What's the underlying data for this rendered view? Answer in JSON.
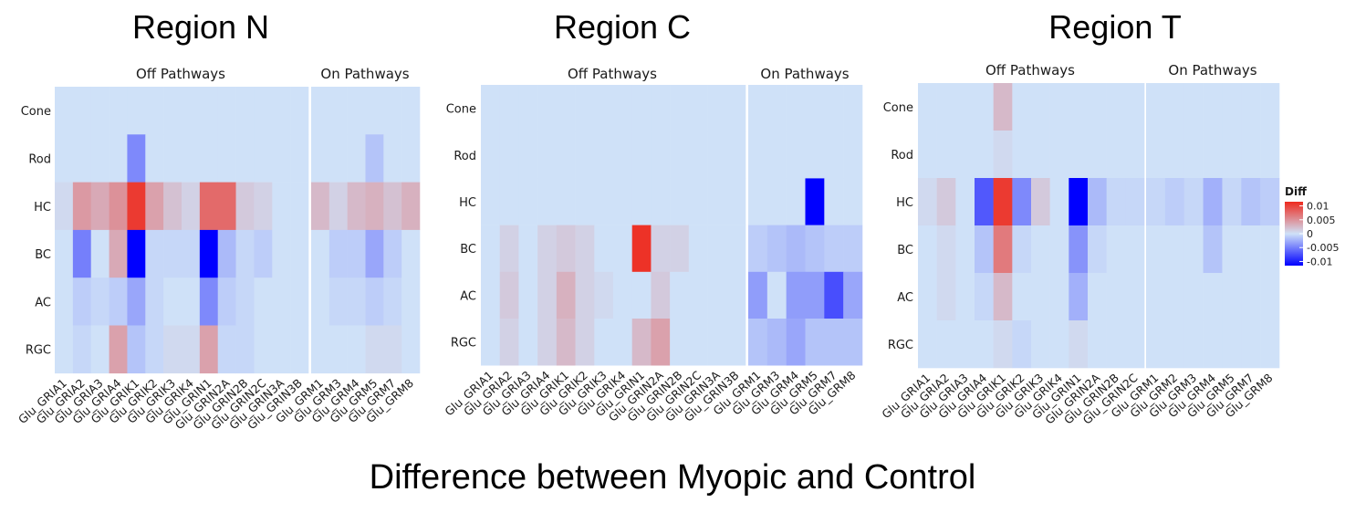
{
  "caption": "Difference between Myopic and Control",
  "rows": [
    "Cone",
    "Rod",
    "HC",
    "BC",
    "AC",
    "RGC"
  ],
  "legend": {
    "title": "Diff",
    "ticks": [
      "0.01",
      "0.005",
      "0",
      "-0.005",
      "-0.01"
    ],
    "tick_values": [
      0.01,
      0.005,
      0,
      -0.005,
      -0.01
    ],
    "colors": {
      "low": "#0000ff",
      "mid": "#cfe1f8",
      "high": "#ee2a1e"
    }
  },
  "chart_data": [
    {
      "type": "heatmap",
      "title": "Region N",
      "facets": [
        {
          "label": "Off Pathways",
          "columns": [
            "Glu_GRIA1",
            "Glu_GRIA2",
            "Glu_GRIA3",
            "Glu_GRIA4",
            "Glu_GRIK1",
            "Glu_GRIK2",
            "Glu_GRIK3",
            "Glu_GRIK4",
            "Glu_GRIN1",
            "Glu_GRIN2A",
            "Glu_GRIN2B",
            "Glu_GRIN2C",
            "Glu_GRIN3A",
            "Glu_GRIN3B"
          ],
          "values": [
            [
              0,
              0,
              0,
              0,
              0,
              0,
              0,
              0,
              0,
              0,
              0,
              0,
              0,
              0
            ],
            [
              0,
              0,
              0,
              0,
              -0.0045,
              0,
              0,
              0,
              0,
              0,
              0,
              0,
              0,
              0
            ],
            [
              0.0005,
              0.0045,
              0.0035,
              0.005,
              0.0105,
              0.004,
              0.002,
              0.001,
              0.0075,
              0.0075,
              0.0015,
              0.001,
              0,
              0
            ],
            [
              0,
              -0.005,
              0,
              0.0035,
              -0.013,
              -0.0005,
              -0.0005,
              -0.0005,
              -0.013,
              -0.002,
              -0.0005,
              -0.001,
              0,
              0
            ],
            [
              0,
              -0.001,
              -0.0005,
              -0.001,
              -0.003,
              -0.0005,
              0,
              0,
              -0.0045,
              -0.001,
              -0.0005,
              0,
              0,
              0
            ],
            [
              0,
              -0.0005,
              0,
              0.004,
              -0.0015,
              -0.0005,
              0.0005,
              0.0005,
              0.004,
              -0.0005,
              -0.0005,
              0,
              0,
              0
            ]
          ]
        },
        {
          "label": "On Pathways",
          "columns": [
            "Glu_GRM1",
            "Glu_GRM3",
            "Glu_GRM4",
            "Glu_GRM5",
            "Glu_GRM7",
            "Glu_GRM8"
          ],
          "values": [
            [
              0,
              0,
              0,
              0,
              0,
              0
            ],
            [
              0,
              0,
              0,
              -0.0015,
              0,
              0
            ],
            [
              0.0025,
              0.001,
              0.0025,
              0.003,
              0.002,
              0.003
            ],
            [
              0,
              -0.001,
              -0.001,
              -0.003,
              -0.001,
              0
            ],
            [
              0,
              -0.0005,
              -0.0005,
              -0.001,
              -0.0005,
              0
            ],
            [
              0,
              0,
              0,
              0.0005,
              0.0005,
              0
            ]
          ]
        }
      ]
    },
    {
      "type": "heatmap",
      "title": "Region C",
      "facets": [
        {
          "label": "Off Pathways",
          "columns": [
            "Glu_GRIA1",
            "Glu_GRIA2",
            "Glu_GRIA3",
            "Glu_GRIA4",
            "Glu_GRIK1",
            "Glu_GRIK2",
            "Glu_GRIK3",
            "Glu_GRIK4",
            "Glu_GRIN1",
            "Glu_GRIN2A",
            "Glu_GRIN2B",
            "Glu_GRIN2C",
            "Glu_GRIN3A",
            "Glu_GRIN3B"
          ],
          "values": [
            [
              0,
              0,
              0,
              0,
              0,
              0,
              0,
              0,
              0,
              0,
              0,
              0,
              0,
              0
            ],
            [
              0,
              0,
              0,
              0,
              0,
              0,
              0,
              0,
              0,
              0,
              0,
              0,
              0,
              0
            ],
            [
              0,
              0,
              0,
              0,
              0,
              0,
              0,
              0,
              0,
              0,
              0,
              0,
              0,
              0
            ],
            [
              0,
              0.001,
              0,
              0.001,
              0.0015,
              0.001,
              0,
              0,
              0.011,
              0.001,
              0.001,
              0,
              0,
              0
            ],
            [
              0,
              0.0015,
              0,
              0.001,
              0.003,
              0.001,
              0.0005,
              0,
              0,
              0.0015,
              0,
              0,
              0,
              0
            ],
            [
              0,
              0.001,
              0,
              0.001,
              0.0025,
              0.001,
              0,
              0,
              0.0025,
              0.004,
              0,
              0,
              0,
              0
            ]
          ]
        },
        {
          "label": "On Pathways",
          "columns": [
            "Glu_GRM1",
            "Glu_GRM3",
            "Glu_GRM4",
            "Glu_GRM5",
            "Glu_GRM7",
            "Glu_GRM8"
          ],
          "values": [
            [
              0,
              0,
              0,
              0,
              0,
              0
            ],
            [
              0,
              0,
              0,
              0,
              0,
              0
            ],
            [
              0,
              0,
              0,
              -0.0125,
              0,
              0
            ],
            [
              -0.001,
              -0.0015,
              -0.002,
              -0.0015,
              -0.001,
              -0.001
            ],
            [
              -0.0035,
              0,
              -0.0035,
              -0.0035,
              -0.0075,
              -0.003
            ],
            [
              -0.0015,
              -0.002,
              -0.003,
              -0.0015,
              -0.0015,
              -0.0015
            ]
          ]
        }
      ]
    },
    {
      "type": "heatmap",
      "title": "Region T",
      "facets": [
        {
          "label": "Off Pathways",
          "columns": [
            "Glu_GRIA1",
            "Glu_GRIA2",
            "Glu_GRIA3",
            "Glu_GRIA4",
            "Glu_GRIK1",
            "Glu_GRIK2",
            "Glu_GRIK3",
            "Glu_GRIK4",
            "Glu_GRIN1",
            "Glu_GRIN2A",
            "Glu_GRIN2B",
            "Glu_GRIN2C"
          ],
          "values": [
            [
              0,
              0,
              0,
              0,
              0.0025,
              0,
              0,
              0,
              0,
              0,
              0,
              0
            ],
            [
              0,
              0,
              0,
              0,
              0.0005,
              0,
              0,
              0,
              0,
              0,
              0,
              0
            ],
            [
              0.0005,
              0.0015,
              0,
              -0.007,
              0.0105,
              -0.0045,
              0.0015,
              0,
              -0.013,
              -0.002,
              -0.0005,
              -0.0005
            ],
            [
              0,
              0.0005,
              0,
              -0.0015,
              0.0065,
              -0.0005,
              0,
              0,
              -0.004,
              -0.0005,
              0,
              0
            ],
            [
              0,
              0.0005,
              0,
              -0.0005,
              0.0025,
              0,
              0,
              0,
              -0.0025,
              0,
              0,
              0
            ],
            [
              0,
              0,
              0,
              0,
              0.0005,
              -0.0005,
              0,
              0,
              0.0005,
              0,
              0,
              0
            ]
          ]
        },
        {
          "label": "On Pathways",
          "columns": [
            "Glu_GRM1",
            "Glu_GRM2",
            "Glu_GRM3",
            "Glu_GRM4",
            "Glu_GRM5",
            "Glu_GRM7",
            "Glu_GRM8"
          ],
          "values": [
            [
              0,
              0,
              0,
              0,
              0,
              0,
              0
            ],
            [
              0,
              0,
              0,
              0,
              0,
              0,
              0
            ],
            [
              -0.0005,
              -0.001,
              -0.0005,
              -0.0025,
              -0.0005,
              -0.0015,
              -0.001
            ],
            [
              0,
              0,
              0,
              -0.0015,
              0,
              0,
              0
            ],
            [
              0,
              0,
              0,
              0,
              0,
              0,
              0
            ],
            [
              0,
              0,
              0,
              0,
              0,
              0,
              0
            ]
          ]
        }
      ]
    }
  ]
}
